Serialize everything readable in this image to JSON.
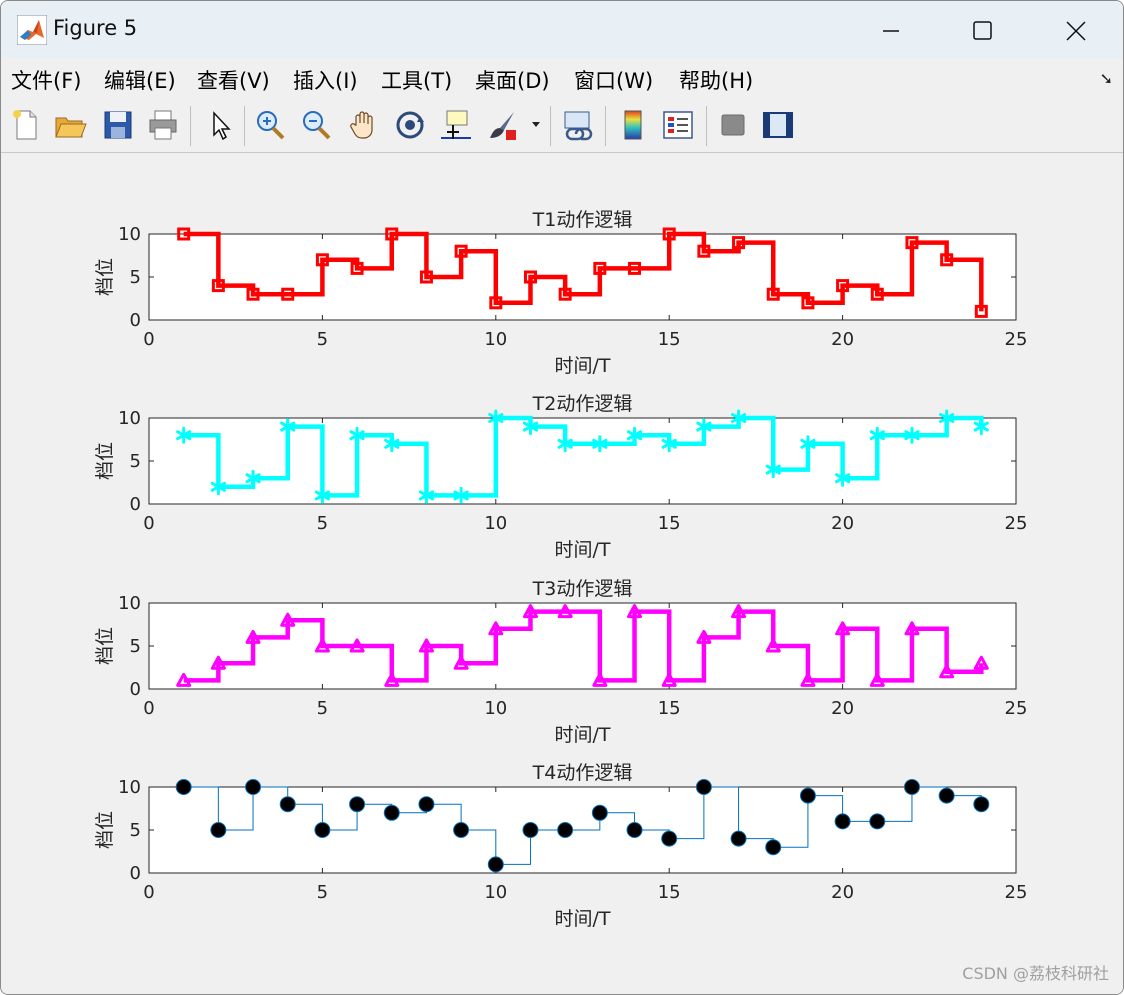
{
  "window": {
    "title": "Figure 5"
  },
  "menubar": {
    "items": [
      "文件(F)",
      "编辑(E)",
      "查看(V)",
      "插入(I)",
      "工具(T)",
      "桌面(D)",
      "窗口(W)",
      "帮助(H)"
    ]
  },
  "toolbar": {
    "icons": [
      "new-file-icon",
      "open-folder-icon",
      "save-icon",
      "print-icon",
      "pointer-icon",
      "zoom-in-icon",
      "zoom-out-icon",
      "pan-hand-icon",
      "rotate-3d-icon",
      "data-cursor-icon",
      "brush-icon",
      "brush-dropdown-icon",
      "link-plot-icon",
      "colorbar-icon",
      "legend-icon",
      "hide-plot-tools-icon",
      "show-plot-tools-icon"
    ]
  },
  "watermark": "CSDN @荔枝科研社",
  "chart_data": [
    {
      "type": "line",
      "title": "T1动作逻辑",
      "xlabel": "时间/T",
      "ylabel": "档位",
      "xlim": [
        0,
        25
      ],
      "ylim": [
        0,
        10
      ],
      "xticks": [
        0,
        5,
        10,
        15,
        20,
        25
      ],
      "yticks": [
        0,
        5,
        10
      ],
      "step": true,
      "marker": "square",
      "color": "#ff0000",
      "x": [
        1,
        2,
        3,
        4,
        5,
        6,
        7,
        8,
        9,
        10,
        11,
        12,
        13,
        14,
        15,
        16,
        17,
        18,
        19,
        20,
        21,
        22,
        23,
        24
      ],
      "values": [
        10,
        4,
        3,
        3,
        7,
        6,
        10,
        5,
        8,
        2,
        5,
        3,
        6,
        6,
        10,
        8,
        9,
        3,
        2,
        4,
        3,
        9,
        7,
        1
      ]
    },
    {
      "type": "line",
      "title": "T2动作逻辑",
      "xlabel": "时间/T",
      "ylabel": "档位",
      "xlim": [
        0,
        25
      ],
      "ylim": [
        0,
        10
      ],
      "xticks": [
        0,
        5,
        10,
        15,
        20,
        25
      ],
      "yticks": [
        0,
        5,
        10
      ],
      "step": true,
      "marker": "asterisk",
      "color": "#00ffff",
      "x": [
        1,
        2,
        3,
        4,
        5,
        6,
        7,
        8,
        9,
        10,
        11,
        12,
        13,
        14,
        15,
        16,
        17,
        18,
        19,
        20,
        21,
        22,
        23,
        24
      ],
      "values": [
        8,
        2,
        3,
        9,
        1,
        8,
        7,
        1,
        1,
        10,
        9,
        7,
        7,
        8,
        7,
        9,
        10,
        4,
        7,
        3,
        8,
        8,
        10,
        9
      ]
    },
    {
      "type": "line",
      "title": "T3动作逻辑",
      "xlabel": "时间/T",
      "ylabel": "档位",
      "xlim": [
        0,
        25
      ],
      "ylim": [
        0,
        10
      ],
      "xticks": [
        0,
        5,
        10,
        15,
        20,
        25
      ],
      "yticks": [
        0,
        5,
        10
      ],
      "step": true,
      "marker": "triangle",
      "color": "#ff00ff",
      "x": [
        1,
        2,
        3,
        4,
        5,
        6,
        7,
        8,
        9,
        10,
        11,
        12,
        13,
        14,
        15,
        16,
        17,
        18,
        19,
        20,
        21,
        22,
        23,
        24
      ],
      "values": [
        1,
        3,
        6,
        8,
        5,
        5,
        1,
        5,
        3,
        7,
        9,
        9,
        1,
        9,
        1,
        6,
        9,
        5,
        1,
        7,
        1,
        7,
        2,
        3
      ]
    },
    {
      "type": "line",
      "title": "T4动作逻辑",
      "xlabel": "时间/T",
      "ylabel": "档位",
      "xlim": [
        0,
        25
      ],
      "ylim": [
        0,
        10
      ],
      "xticks": [
        0,
        5,
        10,
        15,
        20,
        25
      ],
      "yticks": [
        0,
        5,
        10
      ],
      "step": true,
      "marker": "circle",
      "color": "#0072bd",
      "markerColor": "#000000",
      "x": [
        1,
        2,
        3,
        4,
        5,
        6,
        7,
        8,
        9,
        10,
        11,
        12,
        13,
        14,
        15,
        16,
        17,
        18,
        19,
        20,
        21,
        22,
        23,
        24
      ],
      "values": [
        10,
        5,
        10,
        8,
        5,
        8,
        7,
        8,
        5,
        1,
        5,
        5,
        7,
        5,
        4,
        10,
        4,
        3,
        9,
        6,
        6,
        10,
        9,
        8
      ]
    }
  ]
}
